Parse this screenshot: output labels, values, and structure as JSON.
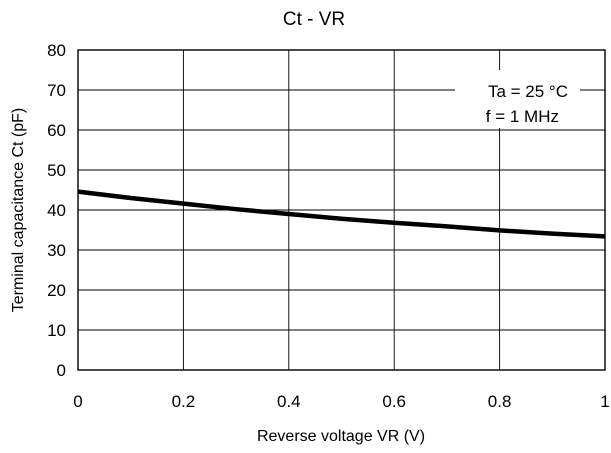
{
  "chart_data": {
    "type": "line",
    "title": "Ct - VR",
    "xlabel": "Reverse voltage VR (V)",
    "ylabel": "Terminal capacitance Ct (pF)",
    "xlim": [
      0,
      1
    ],
    "ylim": [
      0,
      80
    ],
    "x_ticks": [
      0,
      0.2,
      0.4,
      0.6,
      0.8,
      1
    ],
    "x_tick_labels": [
      "0",
      "0.2",
      "0.4",
      "0.6",
      "0.8",
      "1"
    ],
    "y_ticks": [
      0,
      10,
      20,
      30,
      40,
      50,
      60,
      70,
      80
    ],
    "y_tick_labels": [
      "0",
      "10",
      "20",
      "30",
      "40",
      "50",
      "60",
      "70",
      "80"
    ],
    "grid": true,
    "annotations": [
      "Ta = 25 °C",
      "f = 1 MHz"
    ],
    "series": [
      {
        "x": [
          0,
          0.1,
          0.2,
          0.3,
          0.4,
          0.5,
          0.6,
          0.7,
          0.8,
          0.9,
          1.0
        ],
        "y": [
          44.6,
          43.0,
          41.6,
          40.2,
          39.0,
          37.8,
          36.8,
          35.9,
          34.9,
          34.1,
          33.4
        ]
      }
    ]
  }
}
